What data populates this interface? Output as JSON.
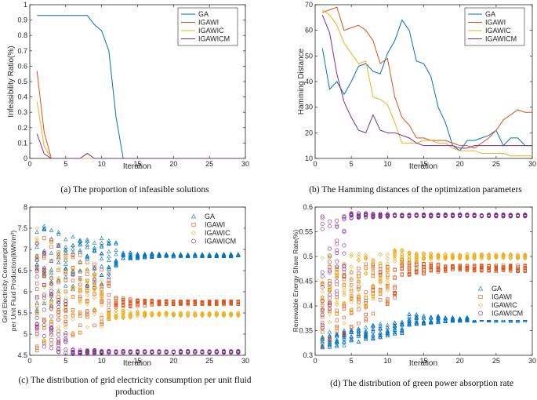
{
  "chart_data": [
    {
      "type": "line",
      "id": "a",
      "caption": "(a) The proportion of infeasible solutions",
      "xlabel": "Iteration",
      "ylabel": "Infeasibility Ratio(%)",
      "xlim": [
        0,
        30
      ],
      "ylim": [
        0,
        1
      ],
      "xticks": [
        0,
        5,
        10,
        15,
        20,
        25,
        30
      ],
      "yticks": [
        0,
        0.1,
        0.2,
        0.3,
        0.4,
        0.5,
        0.6,
        0.7,
        0.8,
        0.9,
        1
      ],
      "ytick_labels": [
        "0",
        "0.1",
        "0.2",
        "0.3",
        "0.4",
        "0.5",
        "0.6",
        "0.7",
        "0.8",
        "0.9",
        "1"
      ],
      "legend_position": "top-right",
      "series": [
        {
          "name": "GA",
          "color": "#0072BD",
          "x": [
            1,
            2,
            3,
            4,
            5,
            6,
            7,
            8,
            9,
            10,
            11,
            12,
            13,
            14,
            15,
            16,
            17,
            18,
            19,
            20,
            21,
            22,
            23,
            24,
            25,
            26,
            27,
            28,
            29,
            30
          ],
          "values": [
            0.93,
            0.93,
            0.93,
            0.93,
            0.93,
            0.93,
            0.93,
            0.93,
            0.87,
            0.83,
            0.7,
            0.27,
            0,
            0,
            0,
            0,
            0,
            0,
            0,
            0,
            0,
            0,
            0,
            0,
            0,
            0,
            0,
            0,
            0,
            0
          ]
        },
        {
          "name": "IGAWI",
          "color": "#D95319",
          "x": [
            1,
            2,
            3,
            4,
            5,
            30
          ],
          "values": [
            0.57,
            0.17,
            0,
            0,
            0,
            0
          ]
        },
        {
          "name": "IGAWIC",
          "color": "#EDB120",
          "x": [
            1,
            2,
            3,
            30
          ],
          "values": [
            0.37,
            0.08,
            0,
            0
          ]
        },
        {
          "name": "IGAWICM",
          "color": "#7E2F8E",
          "x": [
            1,
            2,
            3,
            7,
            8,
            9,
            10,
            30
          ],
          "values": [
            0.16,
            0.03,
            0,
            0,
            0.033,
            0,
            0,
            0
          ]
        }
      ]
    },
    {
      "type": "line",
      "id": "b",
      "caption": "(b) The Hamming distances of the optimization parameters",
      "xlabel": "Iteration",
      "ylabel": "Hamming Distance",
      "xlim": [
        0,
        30
      ],
      "ylim": [
        10,
        70
      ],
      "xticks": [
        0,
        5,
        10,
        15,
        20,
        25,
        30
      ],
      "yticks": [
        10,
        20,
        30,
        40,
        50,
        60,
        70
      ],
      "ytick_labels": [
        "10",
        "20",
        "30",
        "40",
        "50",
        "60",
        "70"
      ],
      "legend_position": "top-right",
      "series": [
        {
          "name": "GA",
          "color": "#0072BD",
          "x": [
            1,
            2,
            3,
            4,
            5,
            6,
            7,
            8,
            9,
            10,
            11,
            12,
            13,
            14,
            15,
            16,
            17,
            18,
            19,
            20,
            21,
            22,
            23,
            24,
            25,
            26,
            27,
            28,
            29,
            30
          ],
          "values": [
            53,
            37,
            40,
            35,
            40,
            46,
            47,
            44,
            43,
            51,
            56,
            64,
            60,
            48,
            47,
            42,
            30,
            24,
            15,
            13,
            17,
            17,
            18,
            19,
            21,
            15,
            18,
            18,
            15,
            15
          ]
        },
        {
          "name": "IGAWI",
          "color": "#D95319",
          "x": [
            1,
            2,
            3,
            4,
            5,
            6,
            7,
            8,
            9,
            10,
            11,
            12,
            13,
            14,
            15,
            16,
            17,
            18,
            19,
            20,
            21,
            22,
            23,
            24,
            25,
            26,
            27,
            28,
            29,
            30
          ],
          "values": [
            67,
            68,
            69,
            60,
            61,
            62,
            60,
            56,
            47,
            49,
            34,
            26,
            23,
            18,
            18,
            17,
            17,
            17,
            16,
            15,
            15,
            14,
            16,
            18,
            21,
            25,
            27,
            29,
            28,
            28
          ]
        },
        {
          "name": "IGAWIC",
          "color": "#EDB120",
          "x": [
            1,
            2,
            3,
            4,
            5,
            6,
            7,
            8,
            9,
            10,
            11,
            12,
            13,
            14,
            15,
            16,
            17,
            18,
            19,
            20,
            21,
            22,
            23,
            24,
            25,
            26,
            27,
            28,
            29,
            30
          ],
          "values": [
            68,
            66,
            62,
            55,
            51,
            47,
            48,
            34,
            33,
            31,
            24,
            16,
            16,
            16,
            17,
            17,
            16,
            16,
            14,
            13,
            13,
            13,
            12,
            12,
            12,
            12,
            11,
            11,
            11,
            11
          ]
        },
        {
          "name": "IGAWICM",
          "color": "#7E2F8E",
          "x": [
            1,
            2,
            3,
            4,
            5,
            6,
            7,
            8,
            9,
            10,
            11,
            12,
            13,
            14,
            15,
            16,
            17,
            18,
            19,
            20,
            21,
            22,
            23,
            24,
            25,
            26,
            27,
            28,
            29,
            30
          ],
          "values": [
            66,
            59,
            43,
            32,
            26,
            21,
            20,
            27,
            21,
            20,
            20,
            19,
            18,
            16,
            15,
            15,
            15,
            15,
            15,
            14,
            14,
            15,
            15,
            15,
            15,
            15,
            15,
            15,
            15,
            15
          ]
        }
      ]
    },
    {
      "type": "scatter",
      "id": "c",
      "caption_line1": "(c) The distribution of grid electricity consumption per unit fluid",
      "caption_line2": "production",
      "xlabel": "Iteration",
      "ylabel_line1": "Grid Electricity Consumption",
      "ylabel_line2": "per Unit Fluid Production(kWh/m³)",
      "xlim": [
        0,
        30
      ],
      "ylim": [
        4.5,
        8
      ],
      "xticks": [
        0,
        5,
        10,
        15,
        20,
        25,
        30
      ],
      "yticks": [
        4.5,
        5,
        5.5,
        6,
        6.5,
        7,
        7.5,
        8
      ],
      "ytick_labels": [
        "4.5",
        "5",
        "5.5",
        "6",
        "6.5",
        "7",
        "7.5",
        "8"
      ],
      "legend_position": "top-right",
      "series": [
        {
          "name": "GA",
          "marker": "triangle",
          "color": "#0072BD",
          "x_start": 1,
          "x_end": 29,
          "early_low": 5.5,
          "early_high": 7.6,
          "converge_iter": 13,
          "final_center": 6.86,
          "final_spread": 0.03
        },
        {
          "name": "IGAWI",
          "marker": "square",
          "color": "#D95319",
          "x_start": 1,
          "x_end": 29,
          "early_low": 4.6,
          "early_high": 7.5,
          "converge_iter": 12,
          "final_center": 5.74,
          "final_spread": 0.04
        },
        {
          "name": "IGAWIC",
          "marker": "diamond",
          "color": "#EDB120",
          "x_start": 1,
          "x_end": 29,
          "early_low": 4.8,
          "early_high": 7.5,
          "converge_iter": 11,
          "final_center": 5.47,
          "final_spread": 0.04
        },
        {
          "name": "IGAWICM",
          "marker": "circle",
          "color": "#7E2F8E",
          "x_start": 1,
          "x_end": 29,
          "early_low": 4.55,
          "early_high": 7.3,
          "converge_iter": 6,
          "final_center": 4.58,
          "final_spread": 0.02
        }
      ]
    },
    {
      "type": "scatter",
      "id": "d",
      "caption": "(d) The distribution of green power absorption rate",
      "xlabel": "Iteration",
      "ylabel": "Renewable Energy Share Rate(%)",
      "xlim": [
        0,
        30
      ],
      "ylim": [
        0.3,
        0.6
      ],
      "xticks": [
        0,
        5,
        10,
        15,
        20,
        25,
        30
      ],
      "yticks": [
        0.3,
        0.35,
        0.4,
        0.45,
        0.5,
        0.55,
        0.6
      ],
      "ytick_labels": [
        "0.3",
        "0.35",
        "0.4",
        "0.45",
        "0.5",
        "0.55",
        "0.6"
      ],
      "legend_position": "bottom-right",
      "series": [
        {
          "name": "GA",
          "marker": "triangle",
          "color": "#0072BD",
          "x_start": 1,
          "x_end": 29,
          "early_low": 0.31,
          "early_high": 0.345,
          "converge_iter": 13,
          "final_center": 0.373,
          "final_spread": 0.004
        },
        {
          "name": "IGAWI",
          "marker": "square",
          "color": "#D95319",
          "x_start": 1,
          "x_end": 29,
          "early_low": 0.31,
          "early_high": 0.48,
          "converge_iter": 12,
          "final_center": 0.476,
          "final_spread": 0.006
        },
        {
          "name": "IGAWIC",
          "marker": "diamond",
          "color": "#EDB120",
          "x_start": 1,
          "x_end": 29,
          "early_low": 0.33,
          "early_high": 0.5,
          "converge_iter": 11,
          "final_center": 0.5,
          "final_spread": 0.005
        },
        {
          "name": "IGAWICM",
          "marker": "circle",
          "color": "#7E2F8E",
          "x_start": 1,
          "x_end": 29,
          "early_low": 0.33,
          "early_high": 0.585,
          "converge_iter": 5,
          "final_center": 0.583,
          "final_spread": 0.002
        }
      ]
    }
  ]
}
